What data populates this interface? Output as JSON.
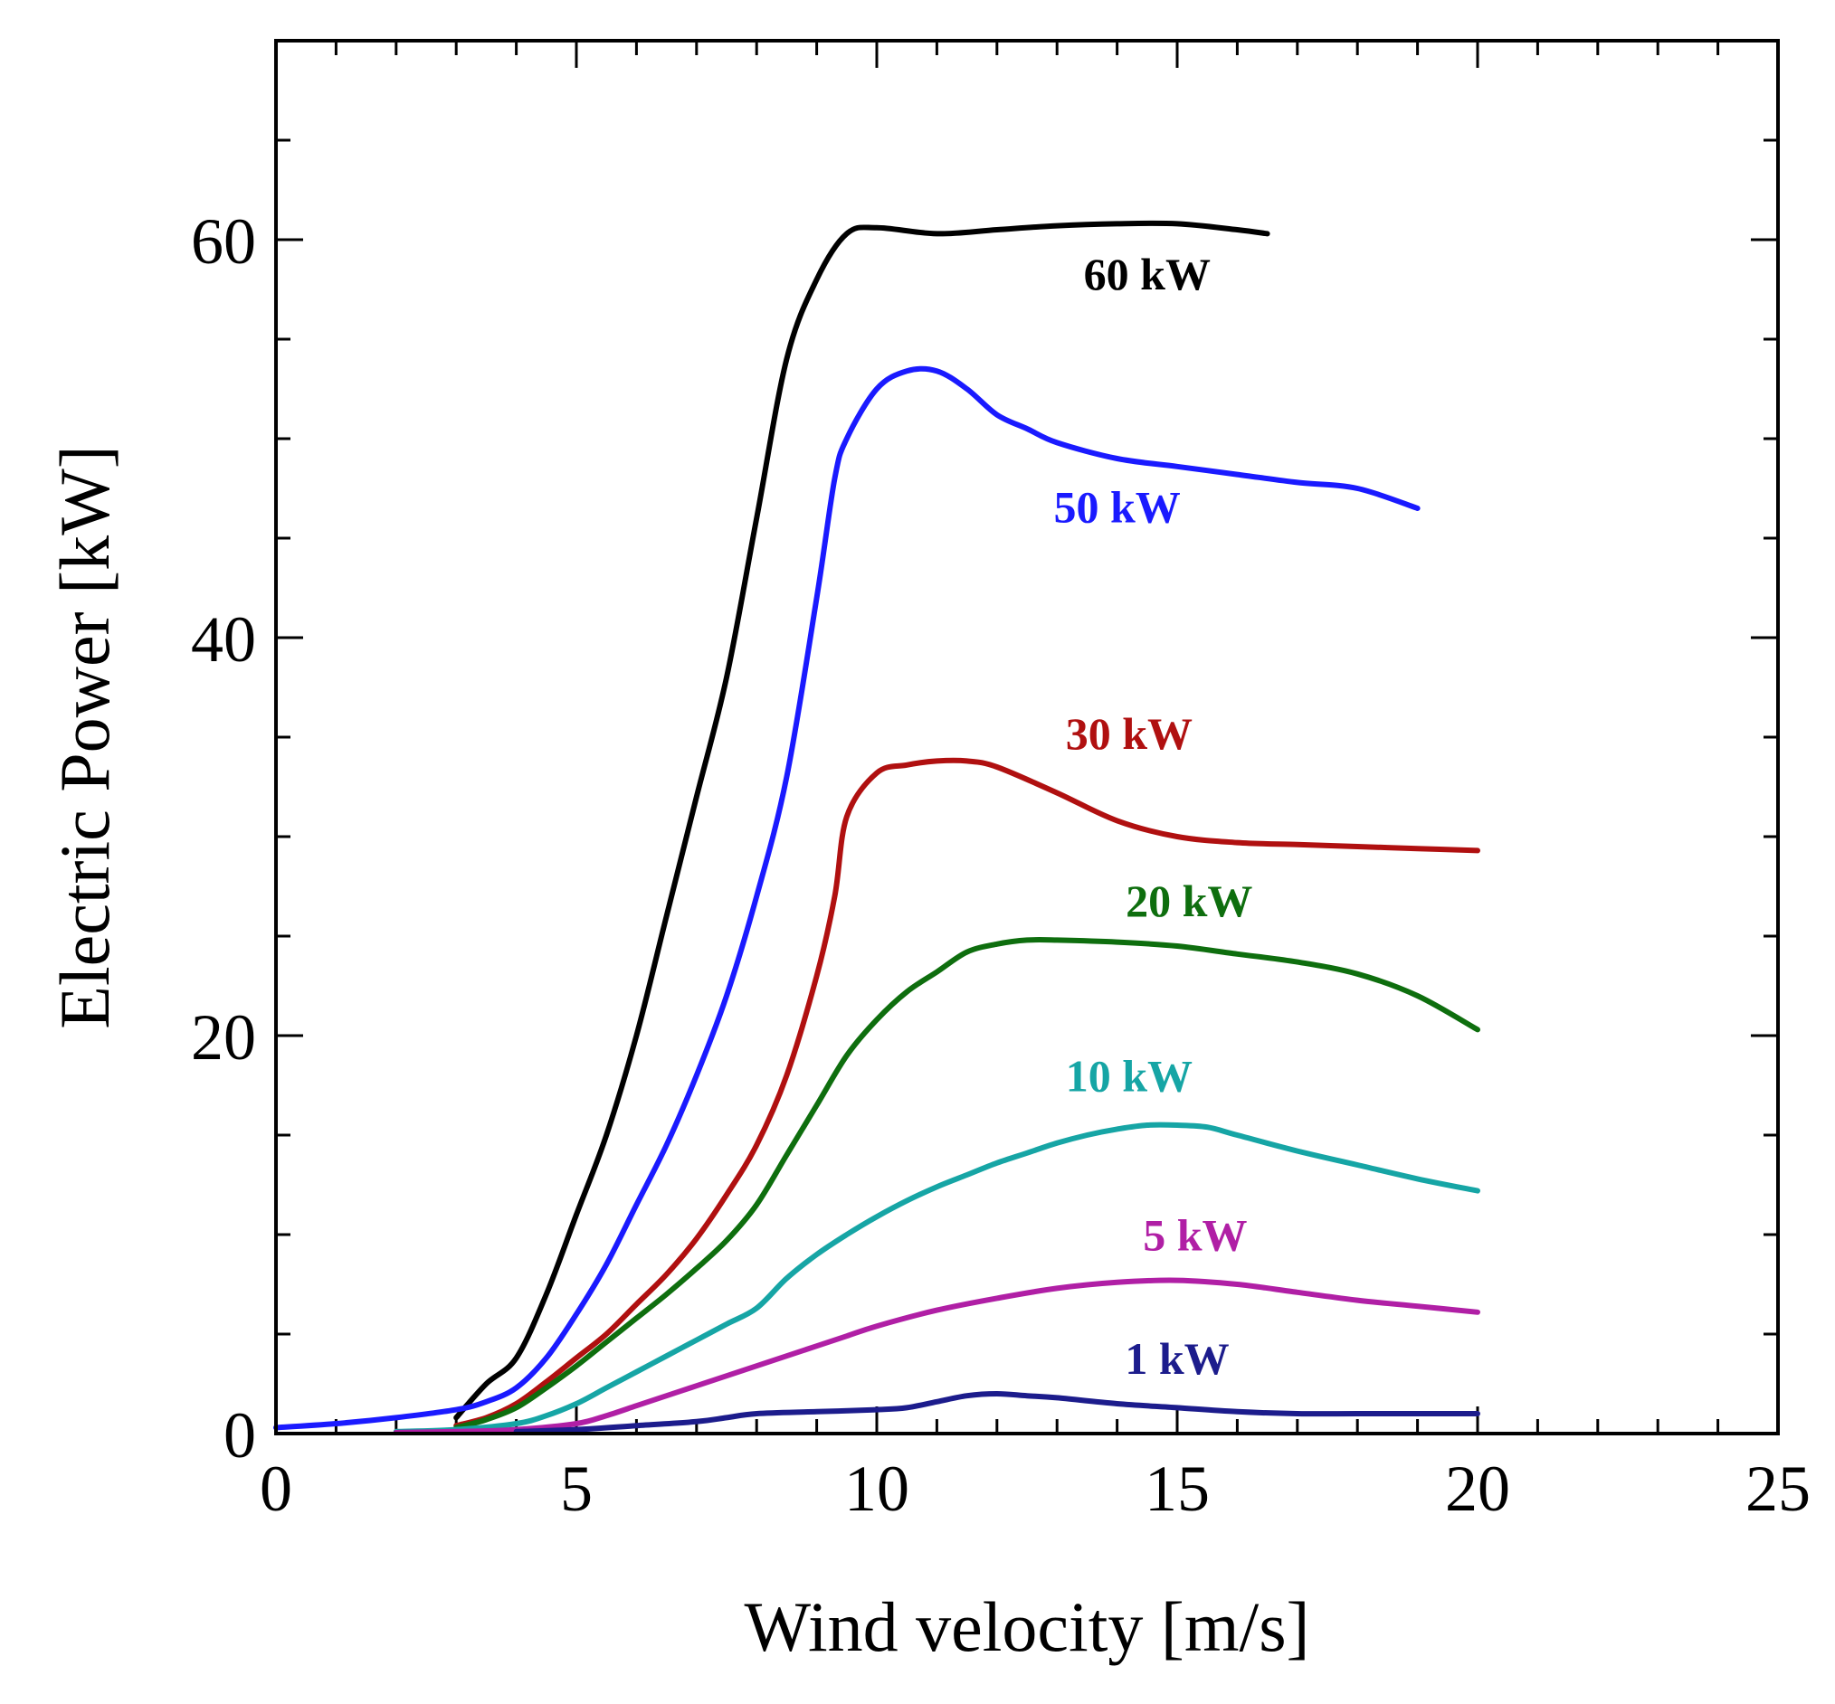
{
  "chart_data": {
    "type": "line",
    "title": "",
    "xlabel": "Wind velocity [m/s]",
    "ylabel": "Electric Power [kW]",
    "xlim": [
      0,
      25
    ],
    "ylim": [
      0,
      70
    ],
    "xticks": [
      0,
      5,
      10,
      15,
      20,
      25
    ],
    "yticks": [
      0,
      20,
      40,
      60
    ],
    "grid": false,
    "legend": "inline labels",
    "series": [
      {
        "name": "60 kW",
        "label": "60 kW",
        "color": "#000000",
        "label_pos": [
          14.5,
          57.5
        ],
        "points": [
          [
            3,
            0.8
          ],
          [
            3.5,
            2.5
          ],
          [
            4,
            3.8
          ],
          [
            4.5,
            7
          ],
          [
            5,
            11
          ],
          [
            5.5,
            15
          ],
          [
            6,
            20
          ],
          [
            6.5,
            26
          ],
          [
            7,
            32
          ],
          [
            7.5,
            38
          ],
          [
            8,
            46
          ],
          [
            8.5,
            54
          ],
          [
            9,
            58
          ],
          [
            9.5,
            60.3
          ],
          [
            10,
            60.6
          ],
          [
            11,
            60.3
          ],
          [
            12,
            60.5
          ],
          [
            13,
            60.7
          ],
          [
            14,
            60.8
          ],
          [
            15,
            60.8
          ],
          [
            16,
            60.5
          ],
          [
            16.5,
            60.3
          ]
        ]
      },
      {
        "name": "50 kW",
        "label": "50 kW",
        "color": "#1a1aff",
        "label_pos": [
          14,
          45.8
        ],
        "points": [
          [
            0,
            0.3
          ],
          [
            1,
            0.5
          ],
          [
            2,
            0.8
          ],
          [
            3,
            1.2
          ],
          [
            3.5,
            1.6
          ],
          [
            4,
            2.3
          ],
          [
            4.5,
            3.8
          ],
          [
            5,
            6
          ],
          [
            5.5,
            8.5
          ],
          [
            6,
            11.5
          ],
          [
            6.5,
            14.5
          ],
          [
            7,
            18
          ],
          [
            7.5,
            22
          ],
          [
            8,
            27
          ],
          [
            8.5,
            33
          ],
          [
            9,
            42
          ],
          [
            9.3,
            48
          ],
          [
            9.5,
            50
          ],
          [
            10,
            52.5
          ],
          [
            10.5,
            53.4
          ],
          [
            11,
            53.4
          ],
          [
            11.5,
            52.5
          ],
          [
            12,
            51.2
          ],
          [
            12.5,
            50.5
          ],
          [
            13,
            49.8
          ],
          [
            14,
            49
          ],
          [
            15,
            48.6
          ],
          [
            16,
            48.2
          ],
          [
            17,
            47.8
          ],
          [
            18,
            47.5
          ],
          [
            19,
            46.5
          ]
        ]
      },
      {
        "name": "30 kW",
        "label": "30 kW",
        "color": "#b01010",
        "label_pos": [
          14.2,
          34.4
        ],
        "points": [
          [
            3,
            0.4
          ],
          [
            3.5,
            0.8
          ],
          [
            4,
            1.5
          ],
          [
            4.5,
            2.6
          ],
          [
            5,
            3.8
          ],
          [
            5.5,
            5
          ],
          [
            6,
            6.5
          ],
          [
            6.5,
            8
          ],
          [
            7,
            9.8
          ],
          [
            7.5,
            12
          ],
          [
            8,
            14.5
          ],
          [
            8.5,
            18
          ],
          [
            9,
            23
          ],
          [
            9.3,
            27
          ],
          [
            9.5,
            31
          ],
          [
            10,
            33.2
          ],
          [
            10.5,
            33.6
          ],
          [
            11,
            33.8
          ],
          [
            11.5,
            33.8
          ],
          [
            12,
            33.5
          ],
          [
            13,
            32.2
          ],
          [
            14,
            30.8
          ],
          [
            15,
            30
          ],
          [
            16,
            29.7
          ],
          [
            17,
            29.6
          ],
          [
            18,
            29.5
          ],
          [
            19,
            29.4
          ],
          [
            20,
            29.3
          ]
        ]
      },
      {
        "name": "20 kW",
        "label": "20 kW",
        "color": "#0e6e0e",
        "label_pos": [
          15.2,
          26.0
        ],
        "points": [
          [
            3,
            0.3
          ],
          [
            3.5,
            0.7
          ],
          [
            4,
            1.3
          ],
          [
            4.5,
            2.3
          ],
          [
            5,
            3.4
          ],
          [
            5.5,
            4.6
          ],
          [
            6,
            5.8
          ],
          [
            6.5,
            7
          ],
          [
            7,
            8.3
          ],
          [
            7.5,
            9.7
          ],
          [
            8,
            11.5
          ],
          [
            8.5,
            14
          ],
          [
            9,
            16.5
          ],
          [
            9.5,
            19
          ],
          [
            10,
            20.8
          ],
          [
            10.5,
            22.2
          ],
          [
            11,
            23.2
          ],
          [
            11.5,
            24.2
          ],
          [
            12,
            24.6
          ],
          [
            12.5,
            24.8
          ],
          [
            13,
            24.8
          ],
          [
            14,
            24.7
          ],
          [
            15,
            24.5
          ],
          [
            16,
            24.1
          ],
          [
            17,
            23.7
          ],
          [
            18,
            23.1
          ],
          [
            19,
            22
          ],
          [
            20,
            20.3
          ]
        ]
      },
      {
        "name": "10 kW",
        "label": "10 kW",
        "color": "#16a5a5",
        "label_pos": [
          14.2,
          17.2
        ],
        "points": [
          [
            2,
            0.1
          ],
          [
            3,
            0.2
          ],
          [
            4,
            0.5
          ],
          [
            4.5,
            0.9
          ],
          [
            5,
            1.5
          ],
          [
            5.5,
            2.3
          ],
          [
            6,
            3.1
          ],
          [
            6.5,
            3.9
          ],
          [
            7,
            4.7
          ],
          [
            7.5,
            5.5
          ],
          [
            8,
            6.3
          ],
          [
            8.5,
            7.8
          ],
          [
            9,
            9
          ],
          [
            9.5,
            10
          ],
          [
            10,
            10.9
          ],
          [
            10.5,
            11.7
          ],
          [
            11,
            12.4
          ],
          [
            11.5,
            13
          ],
          [
            12,
            13.6
          ],
          [
            12.5,
            14.1
          ],
          [
            13,
            14.6
          ],
          [
            13.5,
            15
          ],
          [
            14,
            15.3
          ],
          [
            14.5,
            15.5
          ],
          [
            15,
            15.5
          ],
          [
            15.5,
            15.4
          ],
          [
            16,
            15
          ],
          [
            17,
            14.2
          ],
          [
            18,
            13.5
          ],
          [
            19,
            12.8
          ],
          [
            20,
            12.2
          ]
        ]
      },
      {
        "name": "5 kW",
        "label": "5 kW",
        "color": "#b01fa5",
        "label_pos": [
          15.3,
          9.2
        ],
        "points": [
          [
            2,
            0.05
          ],
          [
            3,
            0.1
          ],
          [
            4,
            0.2
          ],
          [
            5,
            0.5
          ],
          [
            5.5,
            0.9
          ],
          [
            6,
            1.4
          ],
          [
            6.5,
            1.9
          ],
          [
            7,
            2.4
          ],
          [
            7.5,
            2.9
          ],
          [
            8,
            3.4
          ],
          [
            8.5,
            3.9
          ],
          [
            9,
            4.4
          ],
          [
            9.5,
            4.9
          ],
          [
            10,
            5.4
          ],
          [
            11,
            6.2
          ],
          [
            12,
            6.8
          ],
          [
            13,
            7.3
          ],
          [
            14,
            7.6
          ],
          [
            15,
            7.7
          ],
          [
            16,
            7.5
          ],
          [
            17,
            7.1
          ],
          [
            18,
            6.7
          ],
          [
            19,
            6.4
          ],
          [
            20,
            6.1
          ]
        ]
      },
      {
        "name": "1 kW",
        "label": "1 kW",
        "color": "#1c1c8c",
        "label_pos": [
          15.0,
          3.0
        ],
        "points": [
          [
            4,
            0.1
          ],
          [
            5,
            0.2
          ],
          [
            6,
            0.4
          ],
          [
            7,
            0.6
          ],
          [
            7.5,
            0.8
          ],
          [
            8,
            1
          ],
          [
            9,
            1.1
          ],
          [
            10,
            1.2
          ],
          [
            10.5,
            1.3
          ],
          [
            11,
            1.6
          ],
          [
            11.5,
            1.9
          ],
          [
            12,
            2
          ],
          [
            12.5,
            1.9
          ],
          [
            13,
            1.8
          ],
          [
            14,
            1.5
          ],
          [
            15,
            1.3
          ],
          [
            16,
            1.1
          ],
          [
            17,
            1
          ],
          [
            18,
            1
          ],
          [
            19,
            1
          ],
          [
            20,
            1
          ]
        ]
      }
    ]
  }
}
